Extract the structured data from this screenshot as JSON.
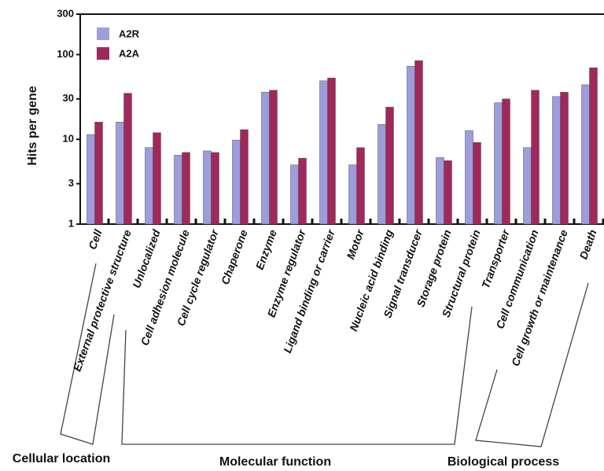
{
  "chart_data": {
    "type": "bar",
    "y_label": "Hits per gene",
    "log_scale": true,
    "categories": [
      "Cell",
      "External protective structure",
      "Unlocalized",
      "Cell adhesion molecule",
      "Cell cycle regulator",
      "Chaperone",
      "Enzyme",
      "Enzyme regulator",
      "Ligand binding or carrier",
      "Motor",
      "Nucleic acid binding",
      "Signal transducer",
      "Storage protein",
      "Structural protein",
      "Transporter",
      "Cell communication",
      "Cell growth or maintenance",
      "Death"
    ],
    "series": [
      {
        "name": "A2R",
        "color": "#9d9ddb",
        "values": [
          11.4,
          16,
          8,
          6.5,
          7.3,
          9.8,
          36,
          5,
          49,
          5,
          15,
          73,
          6.1,
          12.7,
          27,
          8,
          32,
          44
        ]
      },
      {
        "name": "A2A",
        "color": "#a1285c",
        "values": [
          16,
          35,
          12,
          7,
          7,
          13,
          38,
          6,
          53,
          8,
          24,
          85,
          5.6,
          9.2,
          30,
          38,
          36,
          70
        ]
      }
    ],
    "ylim": [
      1,
      300
    ],
    "yticks": [
      1,
      3,
      10,
      30,
      100,
      300
    ],
    "groups": [
      "Cellular location",
      "Molecular function",
      "Biological process"
    ],
    "legend": "top-left"
  }
}
